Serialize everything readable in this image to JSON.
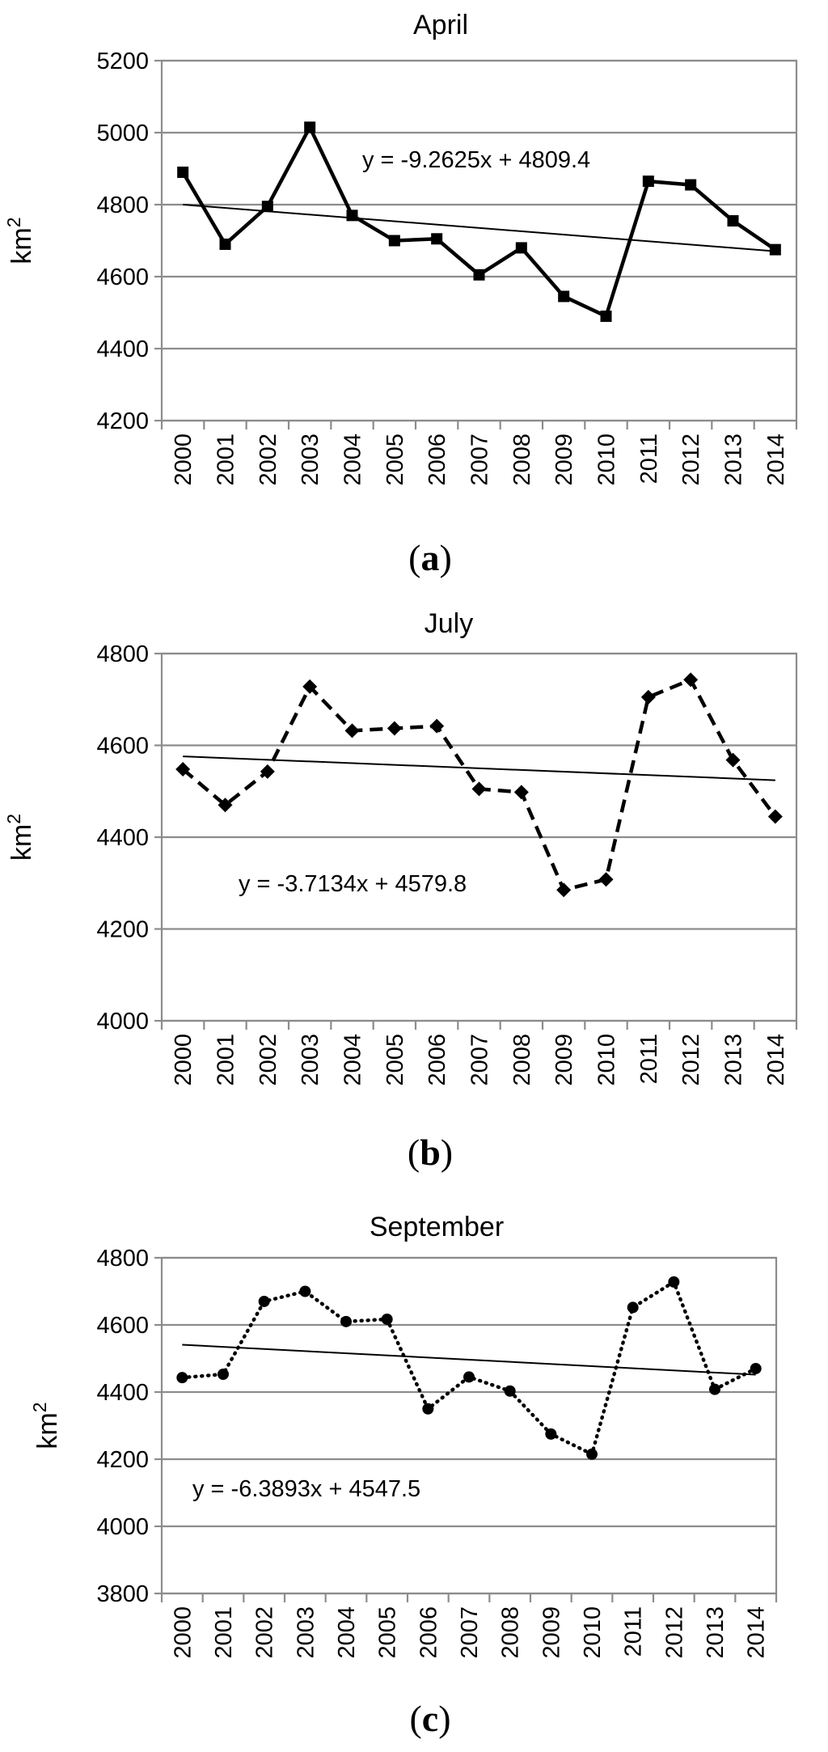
{
  "chart_data": [
    {
      "type": "line",
      "title": "April",
      "ylabel_base": "km",
      "ylabel_sup": "2",
      "categories": [
        "2000",
        "2001",
        "2002",
        "2003",
        "2004",
        "2005",
        "2006",
        "2007",
        "2008",
        "2009",
        "2010",
        "2011",
        "2012",
        "2013",
        "2014"
      ],
      "values": [
        4890,
        4690,
        4795,
        5015,
        4770,
        4700,
        4705,
        4605,
        4680,
        4545,
        4490,
        4865,
        4855,
        4755,
        4675
      ],
      "trend": {
        "slope": -9.2625,
        "intercept": 4809.4,
        "label": "y = -9.2625x + 4809.4"
      },
      "ylim": [
        4200,
        5200
      ],
      "yticks": [
        4200,
        4400,
        4600,
        4800,
        5000,
        5200
      ],
      "marker": "square",
      "line_style": "solid",
      "caption_letter": "a"
    },
    {
      "type": "line",
      "title": "July",
      "ylabel_base": "km",
      "ylabel_sup": "2",
      "categories": [
        "2000",
        "2001",
        "2002",
        "2003",
        "2004",
        "2005",
        "2006",
        "2007",
        "2008",
        "2009",
        "2010",
        "2011",
        "2012",
        "2013",
        "2014"
      ],
      "values": [
        4548,
        4470,
        4543,
        4728,
        4632,
        4637,
        4642,
        4505,
        4498,
        4285,
        4308,
        4705,
        4743,
        4568,
        4445
      ],
      "trend": {
        "slope": -3.7134,
        "intercept": 4579.8,
        "label": "y = -3.7134x + 4579.8"
      },
      "ylim": [
        4000,
        4800
      ],
      "yticks": [
        4000,
        4200,
        4400,
        4600,
        4800
      ],
      "marker": "diamond",
      "line_style": "dashed",
      "caption_letter": "b"
    },
    {
      "type": "line",
      "title": "September",
      "ylabel_base": "km",
      "ylabel_sup": "2",
      "categories": [
        "2000",
        "2001",
        "2002",
        "2003",
        "2004",
        "2005",
        "2006",
        "2007",
        "2008",
        "2009",
        "2010",
        "2011",
        "2012",
        "2013",
        "2014"
      ],
      "values": [
        4443,
        4453,
        4670,
        4700,
        4610,
        4617,
        4350,
        4445,
        4403,
        4275,
        4215,
        4652,
        4728,
        4408,
        4470
      ],
      "trend": {
        "slope": -6.3893,
        "intercept": 4547.5,
        "label": "y = -6.3893x + 4547.5"
      },
      "ylim": [
        3800,
        4800
      ],
      "yticks": [
        3800,
        4000,
        4200,
        4400,
        4600,
        4800
      ],
      "marker": "circle",
      "line_style": "dotted",
      "caption_letter": "c"
    }
  ]
}
